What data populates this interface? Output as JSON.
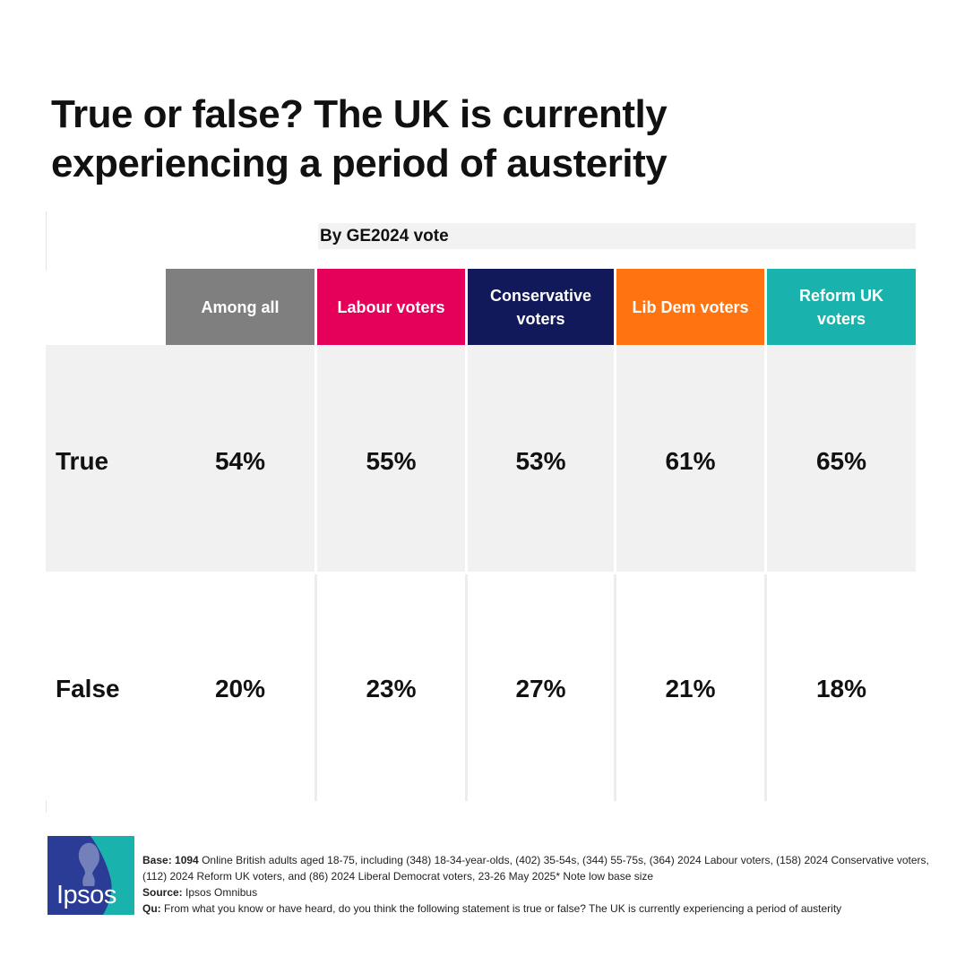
{
  "title": "True or false? The UK is currently experiencing a period of austerity",
  "subheader": "By GE2024 vote",
  "chart_data": {
    "type": "table",
    "title": "True or false? The UK is currently experiencing a period of austerity",
    "categories": [
      "Among all",
      "Labour voters",
      "Conservative voters",
      "Lib Dem voters",
      "Reform UK voters"
    ],
    "series": [
      {
        "name": "True",
        "values": [
          54,
          55,
          53,
          61,
          65
        ]
      },
      {
        "name": "False",
        "values": [
          20,
          23,
          27,
          21,
          18
        ]
      }
    ]
  },
  "columns": [
    {
      "label": "Among all",
      "color": "#7f7f7f"
    },
    {
      "label": "Labour voters",
      "color": "#e5005a"
    },
    {
      "label": "Conservative voters",
      "color": "#12195a"
    },
    {
      "label": "Lib Dem voters",
      "color": "#ff7311"
    },
    {
      "label": "Reform UK voters",
      "color": "#1ab2ad"
    }
  ],
  "rows": [
    {
      "label": "True",
      "cells": [
        "54%",
        "55%",
        "53%",
        "61%",
        "65%"
      ]
    },
    {
      "label": "False",
      "cells": [
        "20%",
        "23%",
        "27%",
        "21%",
        "18%"
      ]
    }
  ],
  "footnote": {
    "base_label": "Base:",
    "base_value": "1094",
    "base_text": "Online British adults aged 18-75, including (348) 18-34-year-olds, (402) 35-54s, (344) 55-75s, (364) 2024 Labour voters, (158) 2024 Conservative voters, (112) 2024 Reform UK voters, and (86) 2024 Liberal Democrat voters, 23-26 May 2025* Note low base size",
    "source_label": "Source:",
    "source_text": "Ipsos Omnibus",
    "qu_label": "Qu:",
    "qu_text": "From what you know or have heard, do you think the following statement is true or false? The UK is currently experiencing a period of austerity"
  },
  "logo": {
    "text": "Ipsos",
    "colors": {
      "blue": "#2a3c96",
      "teal": "#1ab2ad"
    }
  }
}
